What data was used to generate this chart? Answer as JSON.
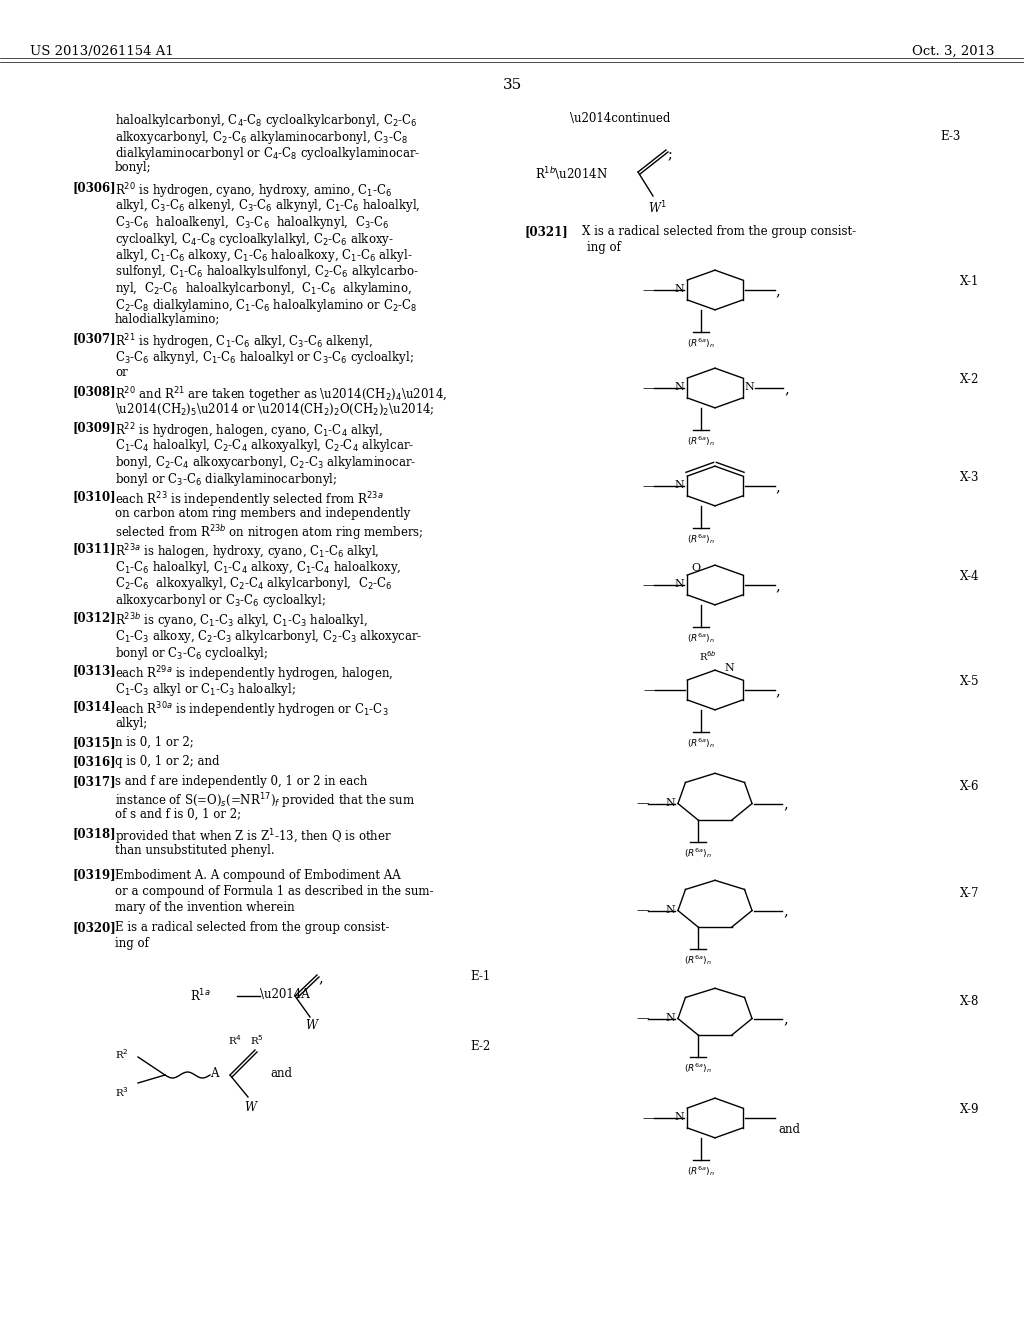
{
  "header_left": "US 2013/0261154 A1",
  "header_right": "Oct. 3, 2013",
  "page_number": "35",
  "bg": "#ffffff",
  "fg": "#000000",
  "fs": 8.5
}
